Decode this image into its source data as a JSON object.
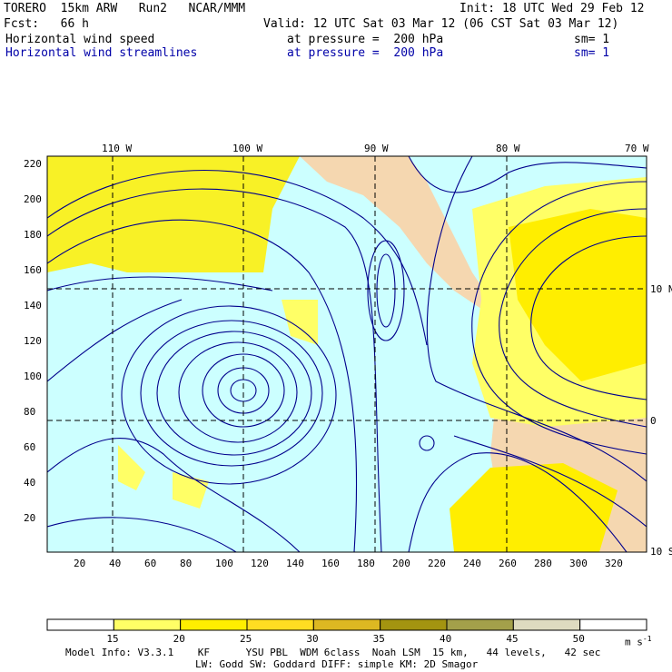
{
  "header": {
    "model": "TORERO  15km ARW   Run2   NCAR/MMM",
    "init": "Init: 18 UTC Wed 29 Feb 12",
    "fcst": "Fcst:   66 h",
    "valid": "Valid: 12 UTC Sat 03 Mar 12 (06 CST Sat 03 Mar 12)",
    "field1": {
      "name": "Horizontal wind speed",
      "level": "at pressure =  200 hPa",
      "sm": "sm= 1"
    },
    "field2": {
      "name": "Horizontal wind streamlines",
      "level": "at pressure =  200 hPa",
      "sm": "sm= 1"
    }
  },
  "map": {
    "top_labels": [
      "110 W",
      "100 W",
      "90 W",
      "80 W",
      "70 W"
    ],
    "right_labels": [
      "10 N",
      "0",
      "10 S"
    ],
    "left_ticks": [
      "220",
      "200",
      "180",
      "160",
      "140",
      "120",
      "100",
      "80",
      "60",
      "40",
      "20"
    ],
    "bottom_ticks": [
      "20",
      "40",
      "60",
      "80",
      "100",
      "120",
      "140",
      "160",
      "180",
      "200",
      "220",
      "240",
      "260",
      "280",
      "300",
      "320"
    ],
    "colors": {
      "ocean": "#ccffff",
      "land": "#f5d7b0",
      "streamline": "#00008c"
    }
  },
  "colorbar": {
    "labels": [
      "15",
      "20",
      "25",
      "30",
      "35",
      "40",
      "45",
      "50"
    ],
    "unit": "m s",
    "unit_exp": "-1",
    "colors": [
      "#ffffff",
      "#ffff66",
      "#ffee00",
      "#ffdd22",
      "#ddb822",
      "#a39410",
      "#a3a04a",
      "#dedbc0",
      "#ffffff"
    ]
  },
  "footer": {
    "line1": "Model Info: V3.3.1    KF      YSU PBL  WDM 6class  Noah LSM  15 km,   44 levels,   42 sec",
    "line2": "LW: Godd SW: Goddard DIFF: simple KM: 2D Smagor"
  }
}
